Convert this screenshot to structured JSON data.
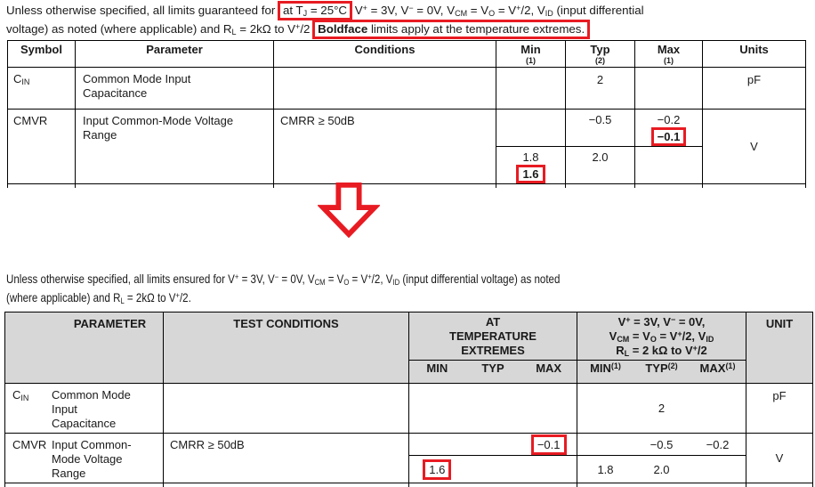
{
  "colors": {
    "annotation_red": "#e81b22",
    "header_gray": "#d7d7d7",
    "table_border": "#000000"
  },
  "icons": {
    "change_arrow": "down-arrow"
  },
  "intro_old": {
    "line1_before": "Unless otherwise specified, all limits guaranteed for",
    "line1_boxed": "at T<sub>J</sub> = 25°C",
    "line1_after": "V<sup>+</sup> = 3V, V<sup>−</sup> = 0V, V<sub>CM</sub> = V<sub>O</sub> = V<sup>+</sup>/2, V<sub>ID</sub> (input differential",
    "line2_before": "voltage) as noted (where applicable) and R<sub>L</sub> = 2kΩ to V<sup>+</sup>/2",
    "line2_boxed": "<b>Boldface</b> limits apply at the temperature extremes."
  },
  "table_old": {
    "headers": {
      "symbol": "Symbol",
      "parameter": "Parameter",
      "conditions": "Conditions",
      "min": "Min",
      "min_note": "(1)",
      "typ": "Typ",
      "typ_note": "(2)",
      "max": "Max",
      "max_note": "(1)",
      "units": "Units"
    },
    "cin": {
      "symbol": "C<sub>IN</sub>",
      "parameter": "Common Mode Input<br>Capacitance",
      "conditions": "",
      "typ": "2",
      "units": "pF"
    },
    "cmvr": {
      "symbol": "CMVR",
      "parameter": "Input Common-Mode Voltage<br>Range",
      "conditions": "CMRR ≥ 50dB",
      "typ_hi": "−0.5",
      "max_roman": "−0.2",
      "max_bold": "−0.1",
      "min_roman": "1.8",
      "min_bold": "1.6",
      "typ_lo": "2.0",
      "units": "V"
    }
  },
  "intro_new": {
    "line1": "Unless otherwise specified, all limits ensured for V<sup>+</sup> = 3V, V<sup>−</sup> = 0V, V<sub>CM</sub> = V<sub>O</sub> = V<sup>+</sup>/2, V<sub>ID</sub> (input differential voltage) as noted",
    "line2": "(where applicable) and R<sub>L</sub> = 2kΩ to V<sup>+</sup>/2."
  },
  "table_new": {
    "headers": {
      "parameter": "PARAMETER",
      "test_conditions": "TEST CONDITIONS",
      "group1": "AT<br>TEMPERATURE<br>EXTREMES",
      "group2": "V<sup>+</sup> = 3V, V<sup>−</sup> = 0V,<br>V<sub>CM</sub> = V<sub>O</sub> = V<sup>+</sup>/2, V<sub>ID</sub><br>R<sub>L</sub> = 2 kΩ to V<sup>+</sup>/2",
      "g1_min": "MIN",
      "g1_typ": "TYP",
      "g1_max": "MAX",
      "g2_min": "MIN<sup>(1)</sup>",
      "g2_typ": "TYP<sup>(2)</sup>",
      "g2_max": "MAX<sup>(1)</sup>",
      "unit": "UNIT"
    },
    "cin": {
      "symbol": "C<sub>IN</sub>",
      "parameter": "Common Mode<br>Input<br>Capacitance",
      "conditions": "",
      "g2_typ": "2",
      "unit": "pF"
    },
    "cmvr": {
      "symbol": "CMVR",
      "parameter": "Input Common-<br>Mode Voltage<br>Range",
      "conditions": "CMRR ≥ 50dB",
      "g1_max": "−0.1",
      "g1_min": "1.6",
      "g2_typ_hi": "−0.5",
      "g2_max": "−0.2",
      "g2_min": "1.8",
      "g2_typ_lo": "2.0",
      "unit": "V"
    }
  }
}
